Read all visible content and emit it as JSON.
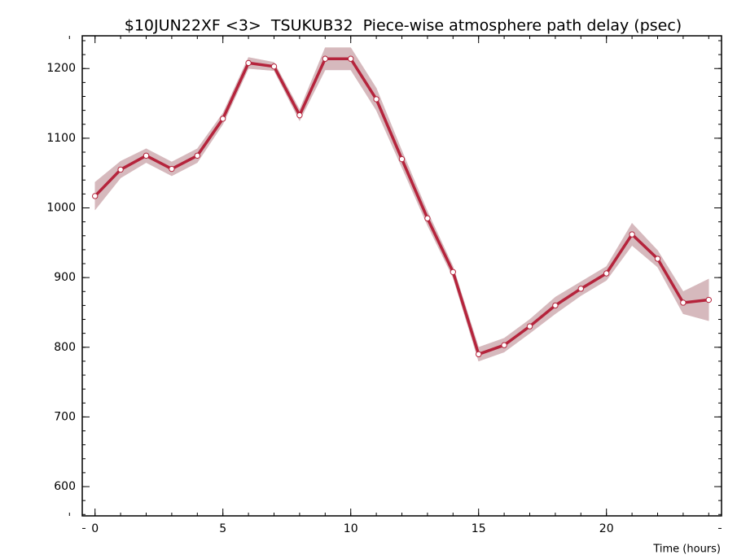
{
  "chart_data": {
    "type": "line",
    "title": "$10JUN22XF <3>  TSUKUB32  Piece-wise atmosphere path delay (psec)",
    "x_label": "Time (hours)",
    "x": [
      0,
      1,
      2,
      3,
      4,
      5,
      6,
      7,
      8,
      9,
      10,
      11,
      12,
      13,
      14,
      15,
      16,
      17,
      18,
      19,
      20,
      21,
      22,
      23,
      24
    ],
    "series": [
      {
        "color": "#b5243c",
        "band_color": "#d6b9bd",
        "values": [
          1017,
          1055,
          1075,
          1056,
          1075,
          1128,
          1208,
          1203,
          1133,
          1214,
          1214,
          1156,
          1070,
          985,
          908,
          790,
          803,
          830,
          860,
          884,
          906,
          962,
          927,
          864,
          868
        ],
        "errors": [
          20,
          12,
          10,
          10,
          10,
          8,
          8,
          6,
          8,
          16,
          16,
          16,
          12,
          10,
          8,
          10,
          10,
          10,
          12,
          10,
          10,
          16,
          12,
          16,
          30
        ]
      }
    ],
    "xlim": [
      -0.5,
      24.5
    ],
    "ylim": [
      558,
      1247
    ],
    "xticks": [
      0,
      5,
      10,
      15,
      20
    ],
    "yticks": [
      600,
      700,
      800,
      900,
      1000,
      1100,
      1200
    ]
  }
}
